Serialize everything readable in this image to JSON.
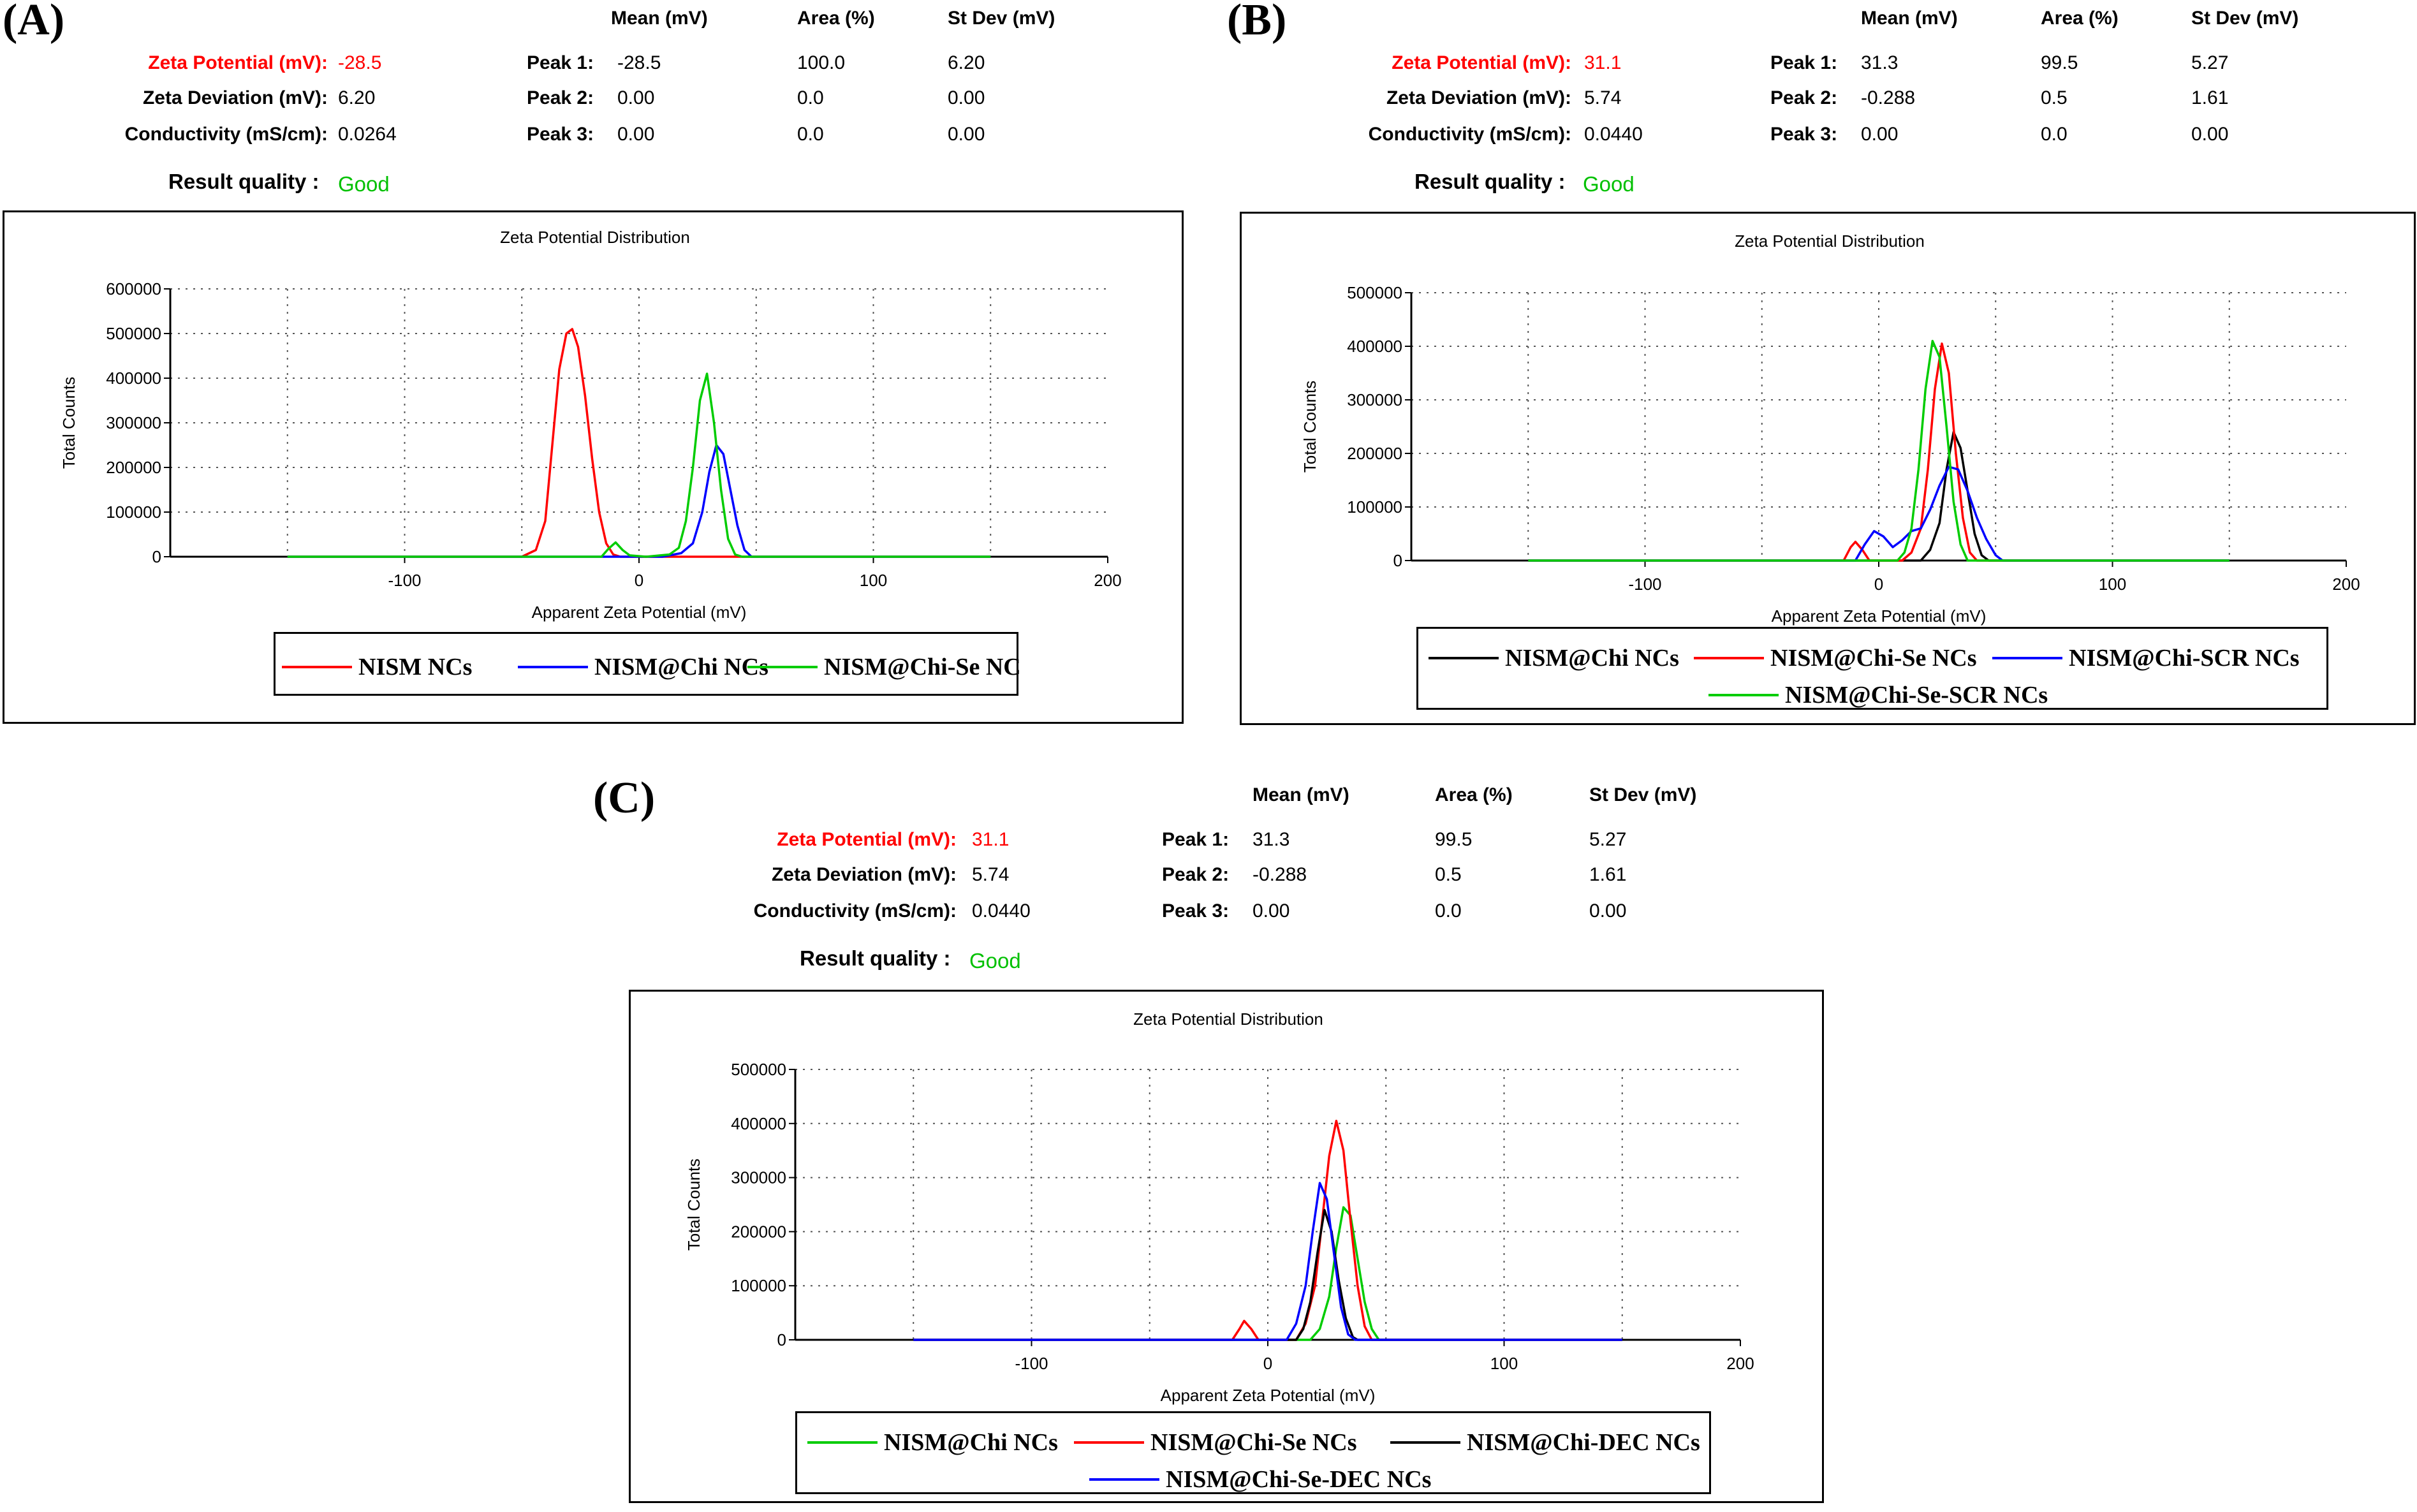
{
  "panels": [
    {
      "label": "(A)",
      "stats": {
        "headers": [
          "Mean (mV)",
          "Area (%)",
          "St Dev (mV)"
        ],
        "zeta_potential_label": "Zeta Potential (mV):",
        "zeta_potential_value": "-28.5",
        "zeta_deviation_label": "Zeta Deviation (mV):",
        "zeta_deviation_value": "6.20",
        "conductivity_label": "Conductivity (mS/cm):",
        "conductivity_value": "0.0264",
        "result_quality_label": "Result quality :",
        "result_quality_value": "Good",
        "peaks": [
          {
            "label": "Peak 1:",
            "mean": "-28.5",
            "area": "100.0",
            "stdev": "6.20"
          },
          {
            "label": "Peak 2:",
            "mean": "0.00",
            "area": "0.0",
            "stdev": "0.00"
          },
          {
            "label": "Peak 3:",
            "mean": "0.00",
            "area": "0.0",
            "stdev": "0.00"
          }
        ]
      }
    },
    {
      "label": "(B)",
      "stats": {
        "headers": [
          "Mean (mV)",
          "Area (%)",
          "St Dev (mV)"
        ],
        "zeta_potential_label": "Zeta Potential (mV):",
        "zeta_potential_value": "31.1",
        "zeta_deviation_label": "Zeta Deviation (mV):",
        "zeta_deviation_value": "5.74",
        "conductivity_label": "Conductivity (mS/cm):",
        "conductivity_value": "0.0440",
        "result_quality_label": "Result quality :",
        "result_quality_value": "Good",
        "peaks": [
          {
            "label": "Peak 1:",
            "mean": "31.3",
            "area": "99.5",
            "stdev": "5.27"
          },
          {
            "label": "Peak 2:",
            "mean": "-0.288",
            "area": "0.5",
            "stdev": "1.61"
          },
          {
            "label": "Peak 3:",
            "mean": "0.00",
            "area": "0.0",
            "stdev": "0.00"
          }
        ]
      }
    },
    {
      "label": "(C)",
      "stats": {
        "headers": [
          "Mean (mV)",
          "Area (%)",
          "St Dev (mV)"
        ],
        "zeta_potential_label": "Zeta Potential (mV):",
        "zeta_potential_value": "31.1",
        "zeta_deviation_label": "Zeta Deviation (mV):",
        "zeta_deviation_value": "5.74",
        "conductivity_label": "Conductivity (mS/cm):",
        "conductivity_value": "0.0440",
        "result_quality_label": "Result quality :",
        "result_quality_value": "Good",
        "peaks": [
          {
            "label": "Peak 1:",
            "mean": "31.3",
            "area": "99.5",
            "stdev": "5.27"
          },
          {
            "label": "Peak 2:",
            "mean": "-0.288",
            "area": "0.5",
            "stdev": "1.61"
          },
          {
            "label": "Peak 3:",
            "mean": "0.00",
            "area": "0.0",
            "stdev": "0.00"
          }
        ]
      }
    }
  ],
  "chart_data": [
    {
      "type": "line",
      "title": "Zeta Potential Distribution",
      "xlabel": "Apparent Zeta Potential (mV)",
      "ylabel": "Total Counts",
      "xlim": [
        -200,
        200
      ],
      "ylim": [
        0,
        600000
      ],
      "xticks": [
        -100,
        0,
        100,
        200
      ],
      "yticks": [
        0,
        100000,
        200000,
        300000,
        400000,
        500000,
        600000
      ],
      "grid": true,
      "legend_position": "bottom",
      "series": [
        {
          "name": "NISM NCs",
          "color": "#ff0000",
          "points": [
            [
              -150,
              0
            ],
            [
              -50,
              0
            ],
            [
              -44,
              15000
            ],
            [
              -40,
              80000
            ],
            [
              -37,
              250000
            ],
            [
              -34,
              420000
            ],
            [
              -31,
              500000
            ],
            [
              -28.5,
              510000
            ],
            [
              -26,
              470000
            ],
            [
              -23,
              360000
            ],
            [
              -20,
              220000
            ],
            [
              -17,
              100000
            ],
            [
              -14,
              30000
            ],
            [
              -11,
              5000
            ],
            [
              -8,
              0
            ],
            [
              150,
              0
            ]
          ]
        },
        {
          "name": "NISM@Chi NCs",
          "color": "#0000ff",
          "points": [
            [
              -150,
              0
            ],
            [
              10,
              0
            ],
            [
              18,
              8000
            ],
            [
              23,
              30000
            ],
            [
              27,
              100000
            ],
            [
              30,
              190000
            ],
            [
              33,
              250000
            ],
            [
              36,
              230000
            ],
            [
              39,
              150000
            ],
            [
              42,
              70000
            ],
            [
              45,
              15000
            ],
            [
              48,
              0
            ],
            [
              150,
              0
            ]
          ]
        },
        {
          "name": "NISM@Chi-Se NCs",
          "color": "#00cc00",
          "points": [
            [
              -150,
              0
            ],
            [
              -16,
              0
            ],
            [
              -13,
              18000
            ],
            [
              -10,
              32000
            ],
            [
              -7,
              15000
            ],
            [
              -4,
              3000
            ],
            [
              3,
              0
            ],
            [
              13,
              5000
            ],
            [
              17,
              20000
            ],
            [
              20,
              80000
            ],
            [
              23,
              200000
            ],
            [
              26,
              350000
            ],
            [
              29,
              410000
            ],
            [
              32,
              300000
            ],
            [
              35,
              150000
            ],
            [
              38,
              40000
            ],
            [
              41,
              5000
            ],
            [
              44,
              0
            ],
            [
              150,
              0
            ]
          ]
        }
      ]
    },
    {
      "type": "line",
      "title": "Zeta Potential Distribution",
      "xlabel": "Apparent Zeta Potential (mV)",
      "ylabel": "Total Counts",
      "xlim": [
        -200,
        200
      ],
      "ylim": [
        0,
        500000
      ],
      "xticks": [
        -100,
        0,
        100,
        200
      ],
      "yticks": [
        0,
        100000,
        200000,
        300000,
        400000,
        500000
      ],
      "grid": true,
      "legend_position": "bottom",
      "series": [
        {
          "name": "NISM@Chi NCs",
          "color": "#000000",
          "points": [
            [
              -150,
              0
            ],
            [
              18,
              0
            ],
            [
              22,
              20000
            ],
            [
              26,
              70000
            ],
            [
              29,
              170000
            ],
            [
              32,
              240000
            ],
            [
              35,
              210000
            ],
            [
              38,
              130000
            ],
            [
              41,
              50000
            ],
            [
              44,
              10000
            ],
            [
              47,
              0
            ],
            [
              150,
              0
            ]
          ]
        },
        {
          "name": "NISM@Chi-Se NCs",
          "color": "#ff0000",
          "points": [
            [
              -150,
              0
            ],
            [
              -15,
              0
            ],
            [
              -12,
              25000
            ],
            [
              -10,
              35000
            ],
            [
              -7,
              20000
            ],
            [
              -4,
              0
            ],
            [
              10,
              0
            ],
            [
              14,
              15000
            ],
            [
              18,
              60000
            ],
            [
              21,
              170000
            ],
            [
              24,
              320000
            ],
            [
              27,
              405000
            ],
            [
              30,
              350000
            ],
            [
              33,
              200000
            ],
            [
              36,
              80000
            ],
            [
              39,
              15000
            ],
            [
              42,
              0
            ],
            [
              150,
              0
            ]
          ]
        },
        {
          "name": "NISM@Chi-SCR NCs",
          "color": "#0000ff",
          "points": [
            [
              -150,
              0
            ],
            [
              -10,
              0
            ],
            [
              -6,
              30000
            ],
            [
              -2,
              55000
            ],
            [
              2,
              45000
            ],
            [
              6,
              25000
            ],
            [
              10,
              38000
            ],
            [
              14,
              55000
            ],
            [
              18,
              60000
            ],
            [
              22,
              95000
            ],
            [
              26,
              140000
            ],
            [
              30,
              175000
            ],
            [
              34,
              170000
            ],
            [
              38,
              130000
            ],
            [
              42,
              80000
            ],
            [
              46,
              40000
            ],
            [
              50,
              10000
            ],
            [
              53,
              0
            ],
            [
              150,
              0
            ]
          ]
        },
        {
          "name": "NISM@Chi-Se-SCR NCs",
          "color": "#00cc00",
          "points": [
            [
              -150,
              0
            ],
            [
              8,
              0
            ],
            [
              11,
              15000
            ],
            [
              14,
              60000
            ],
            [
              17,
              170000
            ],
            [
              20,
              320000
            ],
            [
              23,
              410000
            ],
            [
              26,
              380000
            ],
            [
              29,
              250000
            ],
            [
              32,
              110000
            ],
            [
              35,
              30000
            ],
            [
              38,
              0
            ],
            [
              150,
              0
            ]
          ]
        }
      ]
    },
    {
      "type": "line",
      "title": "Zeta Potential Distribution",
      "xlabel": "Apparent Zeta Potential (mV)",
      "ylabel": "Total Counts",
      "xlim": [
        -200,
        200
      ],
      "ylim": [
        0,
        500000
      ],
      "xticks": [
        -100,
        0,
        100,
        200
      ],
      "yticks": [
        0,
        100000,
        200000,
        300000,
        400000,
        500000
      ],
      "grid": true,
      "legend_position": "bottom",
      "series": [
        {
          "name": "NISM@Chi NCs",
          "color": "#00cc00",
          "points": [
            [
              -150,
              0
            ],
            [
              18,
              0
            ],
            [
              22,
              20000
            ],
            [
              26,
              80000
            ],
            [
              29,
              170000
            ],
            [
              32,
              245000
            ],
            [
              35,
              230000
            ],
            [
              38,
              150000
            ],
            [
              41,
              70000
            ],
            [
              44,
              20000
            ],
            [
              47,
              0
            ],
            [
              150,
              0
            ]
          ]
        },
        {
          "name": "NISM@Chi-Se NCs",
          "color": "#ff0000",
          "points": [
            [
              -150,
              0
            ],
            [
              -15,
              0
            ],
            [
              -12,
              20000
            ],
            [
              -10,
              35000
            ],
            [
              -7,
              20000
            ],
            [
              -4,
              0
            ],
            [
              12,
              0
            ],
            [
              16,
              30000
            ],
            [
              20,
              100000
            ],
            [
              23,
              220000
            ],
            [
              26,
              340000
            ],
            [
              29,
              405000
            ],
            [
              32,
              350000
            ],
            [
              35,
              220000
            ],
            [
              38,
              100000
            ],
            [
              41,
              25000
            ],
            [
              44,
              0
            ],
            [
              150,
              0
            ]
          ]
        },
        {
          "name": "NISM@Chi-DEC NCs",
          "color": "#000000",
          "points": [
            [
              -150,
              0
            ],
            [
              12,
              0
            ],
            [
              15,
              20000
            ],
            [
              18,
              70000
            ],
            [
              21,
              160000
            ],
            [
              24,
              240000
            ],
            [
              27,
              200000
            ],
            [
              30,
              110000
            ],
            [
              33,
              40000
            ],
            [
              36,
              5000
            ],
            [
              38,
              0
            ],
            [
              150,
              0
            ]
          ]
        },
        {
          "name": "NISM@Chi-Se-DEC NCs",
          "color": "#0000ff",
          "points": [
            [
              -150,
              0
            ],
            [
              8,
              0
            ],
            [
              12,
              30000
            ],
            [
              16,
              100000
            ],
            [
              19,
              200000
            ],
            [
              22,
              290000
            ],
            [
              25,
              260000
            ],
            [
              28,
              160000
            ],
            [
              31,
              60000
            ],
            [
              34,
              10000
            ],
            [
              37,
              0
            ],
            [
              150,
              0
            ]
          ]
        }
      ]
    }
  ]
}
